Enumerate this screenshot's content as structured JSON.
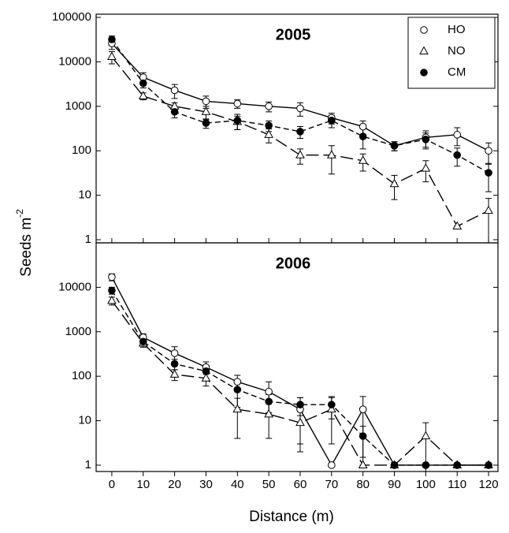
{
  "chart_data": [
    {
      "type": "line",
      "title": "2005",
      "yscale": "log",
      "legend": "upper right",
      "ylabel": "Seeds m",
      "ylabel_superscript": "-2",
      "x": [
        0,
        10,
        20,
        30,
        40,
        50,
        60,
        70,
        80,
        90,
        100,
        110,
        120
      ],
      "xlim": [
        -5,
        123
      ],
      "ylim": [
        0.85,
        118000
      ],
      "yticks": [
        1,
        10,
        100,
        1000,
        10000,
        100000
      ],
      "series": [
        {
          "name": "HO",
          "color": "#000000",
          "marker": "open-circle",
          "dash": "solid",
          "values": [
            26000,
            4500,
            2300,
            1300,
            1150,
            1000,
            900,
            550,
            350,
            130,
            200,
            230,
            100
          ],
          "errors": [
            7000,
            1200,
            800,
            400,
            250,
            250,
            300,
            150,
            120,
            30,
            80,
            100,
            50
          ]
        },
        {
          "name": "NO",
          "color": "#000000",
          "marker": "open-triangle",
          "dash": "long",
          "values": [
            13000,
            1700,
            1000,
            750,
            450,
            230,
            80,
            80,
            60,
            18,
            40,
            2,
            4.5
          ],
          "errors": [
            4000,
            300,
            200,
            250,
            150,
            80,
            30,
            50,
            25,
            10,
            20,
            0,
            4
          ]
        },
        {
          "name": "CM",
          "color": "#000000",
          "marker": "filled-circle",
          "dash": "short",
          "values": [
            32000,
            3300,
            750,
            420,
            480,
            370,
            270,
            480,
            210,
            130,
            180,
            80,
            32
          ],
          "errors": [
            6000,
            700,
            200,
            100,
            180,
            100,
            80,
            150,
            100,
            30,
            70,
            35,
            20
          ]
        }
      ]
    },
    {
      "type": "line",
      "title": "2006",
      "yscale": "log",
      "xlabel": "Distance (m)",
      "x": [
        0,
        10,
        20,
        30,
        40,
        50,
        60,
        70,
        80,
        90,
        100,
        110,
        120
      ],
      "xlim": [
        -5,
        123
      ],
      "ylim": [
        0.72,
        100000
      ],
      "xticks": [
        0,
        10,
        20,
        30,
        40,
        50,
        60,
        70,
        80,
        90,
        100,
        110,
        120
      ],
      "yticks": [
        1,
        10,
        100,
        1000,
        10000
      ],
      "series": [
        {
          "name": "HO",
          "color": "#000000",
          "marker": "open-circle",
          "dash": "solid",
          "values": [
            17000,
            750,
            330,
            160,
            75,
            45,
            18,
            1,
            18,
            1,
            1,
            1,
            1
          ],
          "errors": [
            3000,
            150,
            130,
            50,
            30,
            30,
            15,
            0,
            17,
            0,
            0,
            0,
            0
          ]
        },
        {
          "name": "NO",
          "color": "#000000",
          "marker": "open-triangle",
          "dash": "long",
          "values": [
            5000,
            550,
            110,
            90,
            18,
            14,
            9,
            18,
            1,
            1,
            4.5,
            1,
            1
          ],
          "errors": [
            1000,
            100,
            30,
            30,
            14,
            10,
            7,
            15,
            0,
            0,
            4.5,
            0,
            0
          ]
        },
        {
          "name": "CM",
          "color": "#000000",
          "marker": "filled-circle",
          "dash": "short",
          "values": [
            8500,
            600,
            190,
            130,
            50,
            27,
            23,
            23,
            4.5,
            1,
            1,
            1,
            1
          ],
          "errors": [
            1500,
            120,
            50,
            40,
            30,
            12,
            10,
            12,
            3,
            0,
            0,
            0,
            0
          ]
        }
      ]
    }
  ]
}
